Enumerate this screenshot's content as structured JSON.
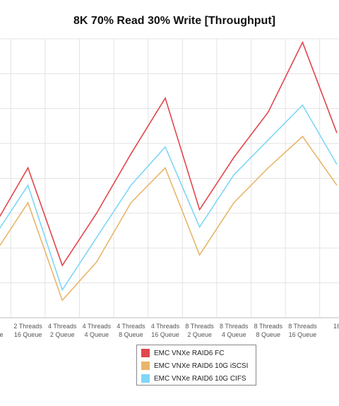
{
  "chart_data": {
    "type": "line",
    "title": "8K 70% Read 30% Write [Throughput]",
    "xlabel": "",
    "ylabel": "",
    "grid": true,
    "legend_position": "bottom",
    "categories": [
      [
        "",
        "Queue"
      ],
      [
        "2 Threads",
        "16 Queue"
      ],
      [
        "4 Threads",
        "2 Queue"
      ],
      [
        "4 Threads",
        "4 Queue"
      ],
      [
        "4 Threads",
        "8 Queue"
      ],
      [
        "4 Threads",
        "16 Queue"
      ],
      [
        "8 Threads",
        "2 Queue"
      ],
      [
        "8 Threads",
        "4 Queue"
      ],
      [
        "8 Threads",
        "8 Queue"
      ],
      [
        "8 Threads",
        "16 Queue"
      ],
      [
        "16",
        ""
      ]
    ],
    "ylim": [
      0,
      8
    ],
    "series": [
      {
        "name": "EMC VNXe RAID6 FC",
        "color": "#e0474c",
        "values": [
          2.6,
          4.3,
          1.5,
          3.0,
          4.7,
          6.3,
          3.1,
          4.6,
          5.9,
          7.9,
          5.3
        ]
      },
      {
        "name": "EMC VNXe RAID6 10G iSCSI",
        "color": "#e8b66a",
        "values": [
          1.8,
          3.3,
          0.5,
          1.6,
          3.3,
          4.3,
          1.8,
          3.3,
          4.3,
          5.2,
          3.8
        ]
      },
      {
        "name": "EMC VNXe RAID6 10G CIFS",
        "color": "#7fd6f7",
        "values": [
          2.3,
          3.8,
          0.8,
          2.3,
          3.8,
          4.9,
          2.6,
          4.1,
          5.1,
          6.1,
          4.4
        ]
      }
    ]
  }
}
